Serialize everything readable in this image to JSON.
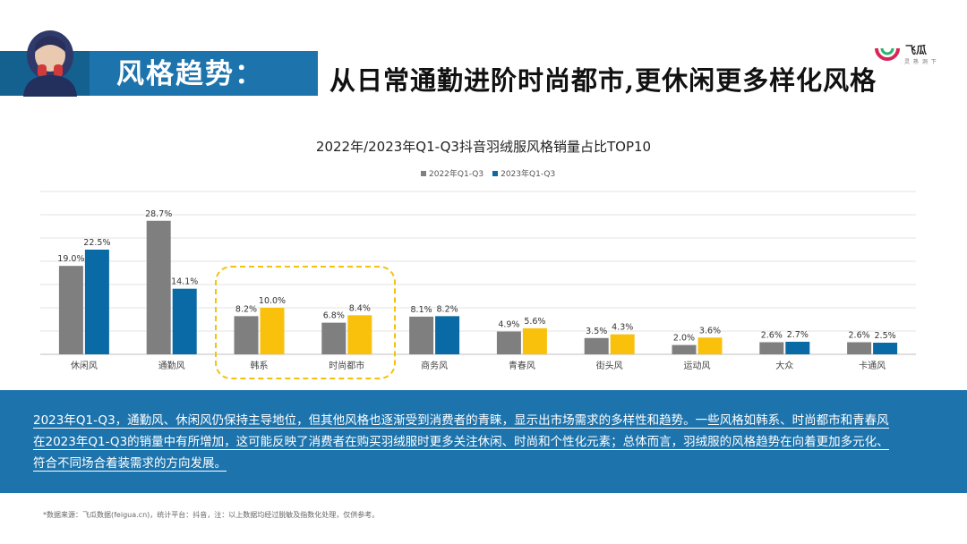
{
  "header": {
    "title": "风格趋势：",
    "subtitle": "从日常通勤进阶时尚都市,更休闲更多样化风格"
  },
  "logo": {
    "name": "飞瓜",
    "tagline": "灵 熟 洞 下"
  },
  "colors": {
    "brand_blue": "#1d74ad",
    "series_2022": "#7f7f7f",
    "series_2023_blue": "#0a6aa5",
    "series_2023_yellow": "#f9c10c",
    "highlight": "#f4c20d"
  },
  "chart_data": {
    "type": "bar",
    "title": "2022年/2023年Q1-Q3抖音羽绒服风格销量占比TOP10",
    "categories": [
      "休闲风",
      "通勤风",
      "韩系",
      "时尚都市",
      "商务风",
      "青春风",
      "街头风",
      "运动风",
      "大众",
      "卡通风"
    ],
    "series": [
      {
        "name": "2022年Q1-Q3",
        "values": [
          19.0,
          28.7,
          8.2,
          6.8,
          8.1,
          4.9,
          3.5,
          2.0,
          2.6,
          2.6
        ],
        "labels": [
          "19.0%",
          "28.7%",
          "8.2%",
          "6.8%",
          "8.1%",
          "4.9%",
          "3.5%",
          "2.0%",
          "2.6%",
          "2.6%"
        ]
      },
      {
        "name": "2023年Q1-Q3",
        "values": [
          22.5,
          14.1,
          10.0,
          8.4,
          8.2,
          5.6,
          4.3,
          3.6,
          2.7,
          2.5
        ],
        "labels": [
          "22.5%",
          "14.1%",
          "10.0%",
          "8.4%",
          "8.2%",
          "5.6%",
          "4.3%",
          "3.6%",
          "2.7%",
          "2.5%"
        ]
      }
    ],
    "highlighted_2023": [
      "韩系",
      "时尚都市",
      "青春风",
      "街头风",
      "运动风"
    ],
    "highlight_box_categories": [
      "韩系",
      "时尚都市"
    ],
    "ylim": [
      0,
      35
    ],
    "grid": true,
    "legend": "top-center"
  },
  "summary": {
    "lines": [
      "2023年Q1-Q3，通勤风、休闲风仍保持主导地位，但其他风格也逐渐受到消费者的青睐，显示出市场需求的多样性和趋势。一些风格如韩系、时尚都市和青春风",
      "在2023年Q1-Q3的销量中有所增加，这可能反映了消费者在购买羽绒服时更多关注休闲、时尚和个性化元素；总体而言，羽绒服的风格趋势在向着更加多元化、",
      "符合不同场合着装需求的方向发展。"
    ]
  },
  "footnote": "*数据来源：飞瓜数据(feigua.cn)，统计平台：抖音，注：以上数据均经过脱敏及指数化处理，仅供参考。"
}
